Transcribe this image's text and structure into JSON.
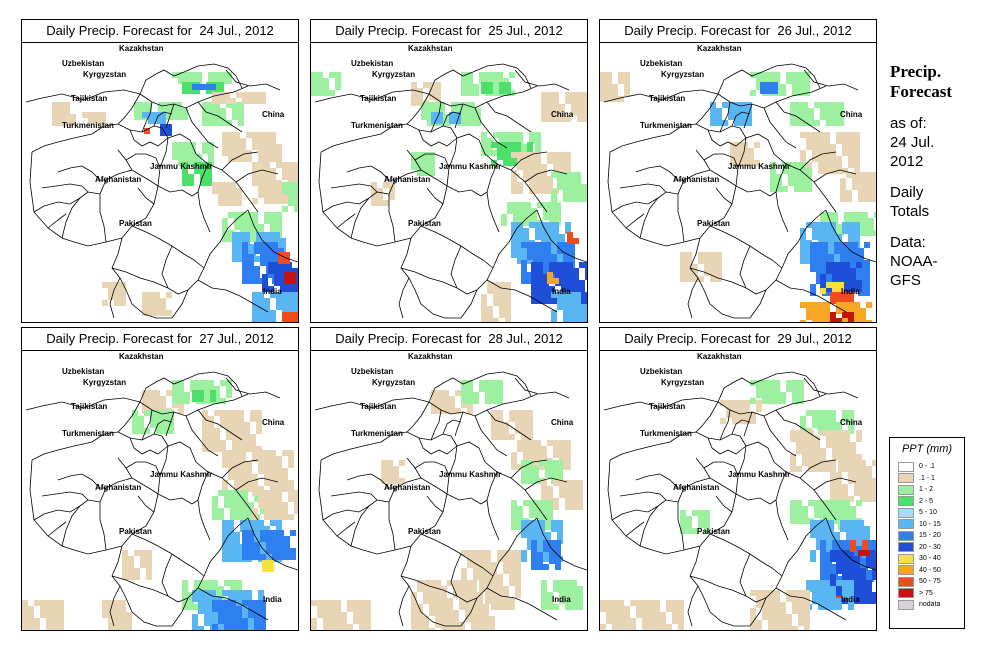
{
  "panels": [
    {
      "title": "Daily Precip. Forecast for  24 Jul., 2012"
    },
    {
      "title": "Daily Precip. Forecast for  25 Jul., 2012"
    },
    {
      "title": "Daily Precip. Forecast for  26 Jul., 2012"
    },
    {
      "title": "Daily Precip. Forecast for  27 Jul., 2012"
    },
    {
      "title": "Daily Precip. Forecast for  28 Jul., 2012"
    },
    {
      "title": "Daily Precip. Forecast for  29 Jul., 2012"
    }
  ],
  "countries": [
    "Kazakhstan",
    "Uzbekistan",
    "Kyrgyzstan",
    "Tajikistan",
    "Turkmenistan",
    "China",
    "Afghanistan",
    "Jammu Kashmir",
    "Pakistan",
    "India"
  ],
  "side": {
    "heading1": "Precip.",
    "heading2": "Forecast",
    "asof1": "as of:",
    "asof2": "24 Jul.",
    "asof3": "2012",
    "daily1": "Daily",
    "daily2": "Totals",
    "data1": "Data:",
    "data2": "NOAA-",
    "data3": "GFS"
  },
  "legend": {
    "title": "PPT (mm)",
    "items": [
      {
        "label": "0 - .1",
        "color": "#ffffff"
      },
      {
        "label": ".1 - 1",
        "color": "#e8d5b5"
      },
      {
        "label": "1 - 2",
        "color": "#9cf0a0"
      },
      {
        "label": "2 - 5",
        "color": "#4ce06a"
      },
      {
        "label": "5 - 10",
        "color": "#a9dcf8"
      },
      {
        "label": "10 - 15",
        "color": "#5ab6f2"
      },
      {
        "label": "15 - 20",
        "color": "#2f7ff0"
      },
      {
        "label": "20 - 30",
        "color": "#1f4ed8"
      },
      {
        "label": "30 - 40",
        "color": "#f6e23a"
      },
      {
        "label": "40 - 50",
        "color": "#f8a626"
      },
      {
        "label": "50 - 75",
        "color": "#ef4c1e"
      },
      {
        "label": "> 75",
        "color": "#c1160e"
      },
      {
        "label": "nodata",
        "color": "#d4d4d4"
      }
    ]
  }
}
